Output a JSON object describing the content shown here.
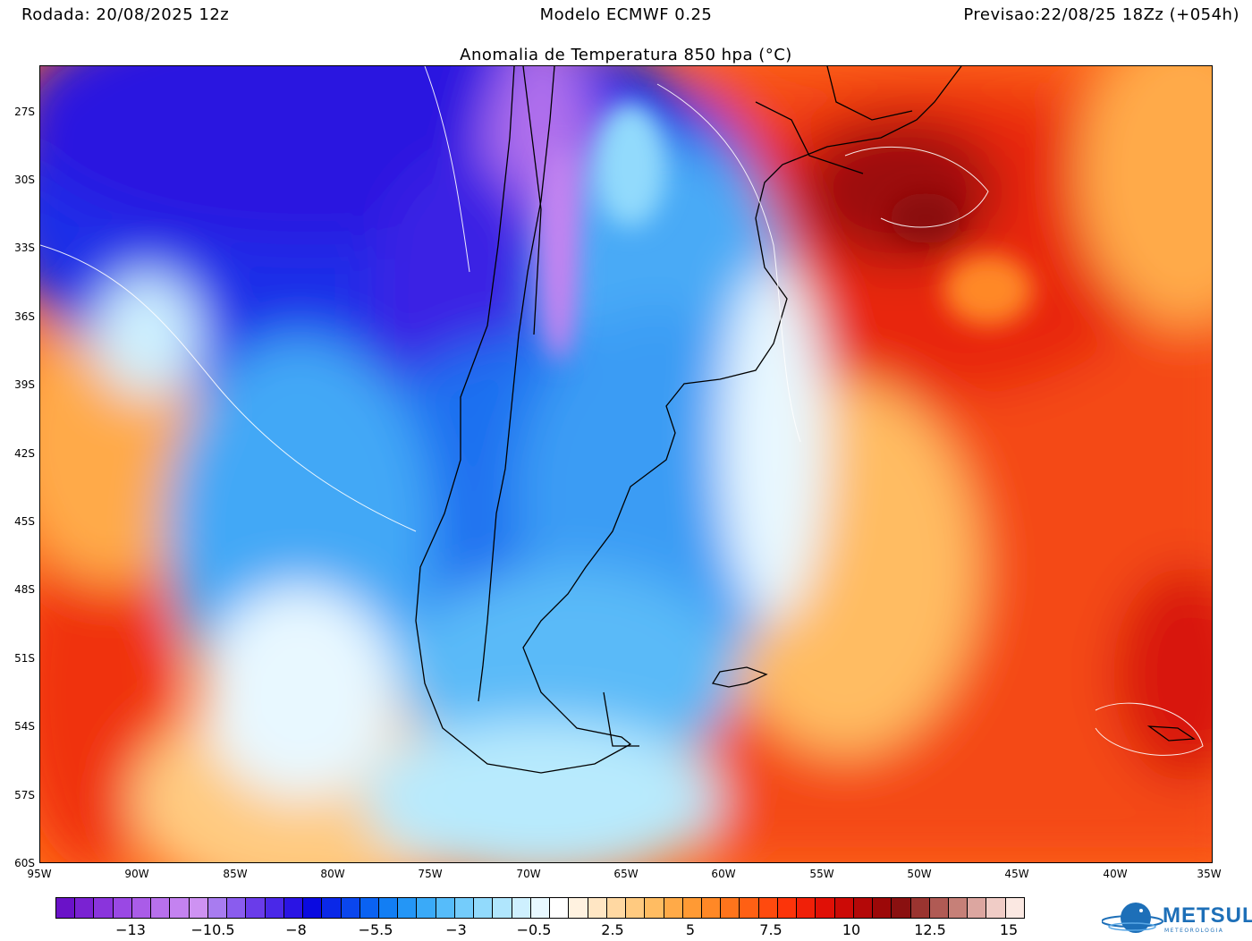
{
  "header": {
    "run": "Rodada: 20/08/2025 12z",
    "model": "Modelo ECMWF 0.25",
    "forecast": "Previsao:22/08/25 18Zz (+054h)"
  },
  "map": {
    "title": "Anomalia de Temperatura 850 hpa (°C)",
    "lat_labels": [
      "27S",
      "30S",
      "33S",
      "36S",
      "39S",
      "42S",
      "45S",
      "48S",
      "51S",
      "54S",
      "57S",
      "60S"
    ],
    "lon_labels": [
      "95W",
      "90W",
      "85W",
      "80W",
      "75W",
      "70W",
      "65W",
      "60W",
      "55W",
      "50W",
      "45W",
      "40W",
      "35W"
    ]
  },
  "legend": {
    "tick_labels": [
      "−13",
      "−10.5",
      "−8",
      "−5.5",
      "−3",
      "−0.5",
      "2.5",
      "5",
      "7.5",
      "10",
      "12.5",
      "15"
    ],
    "colors": [
      "#6a12c8",
      "#7a22d2",
      "#8a34dc",
      "#9a48e4",
      "#aa5ce8",
      "#b870ec",
      "#c482f0",
      "#ce92f2",
      "#a87cf0",
      "#8a5cee",
      "#6a3cea",
      "#4a28e8",
      "#2a14e4",
      "#0a0ae0",
      "#0a28e8",
      "#0a46ee",
      "#0a62f2",
      "#127ef4",
      "#2496f6",
      "#3aaaf8",
      "#56bcfa",
      "#74ccfb",
      "#92dafc",
      "#b0e6fd",
      "#cef0fe",
      "#e8f8ff",
      "#ffffff",
      "#fff2e0",
      "#ffe6c4",
      "#ffd8a2",
      "#ffca80",
      "#ffbc62",
      "#ffaa48",
      "#ff9a34",
      "#ff8826",
      "#ff741c",
      "#ff6014",
      "#ff4a0e",
      "#fc340a",
      "#f02008",
      "#e01006",
      "#cc0a06",
      "#b40808",
      "#9c0808",
      "#8a1010",
      "#9a3430",
      "#b05a54",
      "#c68078",
      "#dca6a0",
      "#f0ccc6",
      "#fbe8e2"
    ]
  },
  "logo": {
    "brand": "METSUL",
    "sub": "METEOROLOGIA"
  }
}
